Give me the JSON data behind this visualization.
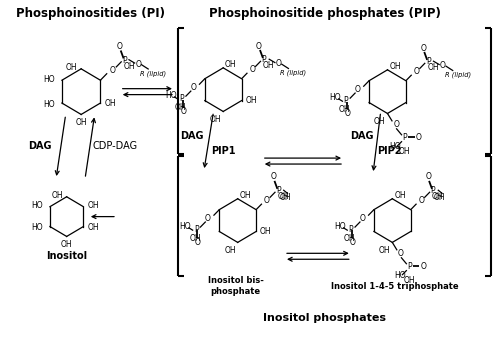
{
  "title_left": "Phosphoinositides (PI)",
  "title_right": "Phosphoinositide phosphates (PIP)",
  "title_bottom": "Inositol phosphates",
  "label_pip1": "PIP1",
  "label_pip2": "PIP2",
  "label_dag_left": "DAG",
  "label_cdp": "CDP-DAG",
  "label_inositol": "Inositol",
  "label_dag_mid": "DAG",
  "label_dag_right": "DAG",
  "label_inositol_bis": "Inositol bis-\nphosphate",
  "label_inositol_tri": "Inositol 1-4-5 triphosphate",
  "bg_color": "#ffffff",
  "text_color": "#000000"
}
